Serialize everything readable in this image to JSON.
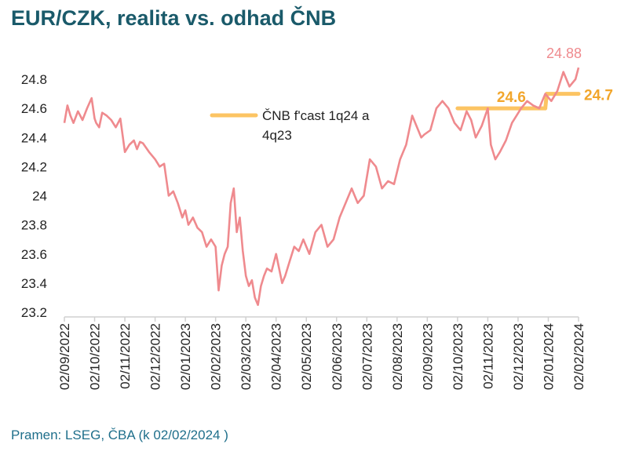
{
  "title": "EUR/CZK, realita vs. odhad ČNB",
  "source": "Pramen: LSEG, ČBA (k 02/02/2024 )",
  "colors": {
    "title": "#1a5a6a",
    "series": "#ef8a8e",
    "forecast": "#fcc463",
    "forecast_label": "#f2a62c",
    "last_label": "#ef8a8e",
    "axis": "#d0d0d0",
    "text": "#222222",
    "source": "#1f6f8b"
  },
  "chart_data": {
    "type": "line",
    "title": "EUR/CZK, realita vs. odhad ČNB",
    "xlabel": "",
    "ylabel": "",
    "ylim": [
      23.2,
      24.9
    ],
    "yticks": [
      "24.8",
      "24.6",
      "24.4",
      "24.2",
      "24",
      "23.8",
      "23.6",
      "23.4",
      "23.2"
    ],
    "xticks": [
      "02/09/2022",
      "02/10/2022",
      "02/11/2022",
      "02/12/2022",
      "02/01/2023",
      "02/02/2023",
      "02/03/2023",
      "02/04/2023",
      "02/05/2023",
      "02/06/2023",
      "02/07/2023",
      "02/08/2023",
      "02/09/2023",
      "02/10/2023",
      "02/11/2023",
      "02/12/2023",
      "02/01/2024",
      "02/02/2024"
    ],
    "series": [
      {
        "name": "EUR/CZK",
        "x_months": [
          0,
          0.1,
          0.2,
          0.3,
          0.45,
          0.6,
          0.75,
          0.9,
          1.0,
          1.05,
          1.15,
          1.25,
          1.4,
          1.55,
          1.7,
          1.85,
          2.0,
          2.15,
          2.3,
          2.4,
          2.5,
          2.6,
          2.8,
          3.0,
          3.15,
          3.3,
          3.45,
          3.6,
          3.75,
          3.9,
          4.0,
          4.1,
          4.25,
          4.4,
          4.55,
          4.7,
          4.85,
          5.0,
          5.1,
          5.2,
          5.3,
          5.4,
          5.5,
          5.6,
          5.7,
          5.8,
          5.9,
          6.0,
          6.1,
          6.2,
          6.3,
          6.4,
          6.5,
          6.6,
          6.7,
          6.85,
          7.0,
          7.2,
          7.3,
          7.45,
          7.6,
          7.75,
          7.9,
          8.1,
          8.3,
          8.5,
          8.7,
          8.9,
          9.1,
          9.3,
          9.5,
          9.7,
          9.9,
          10.1,
          10.3,
          10.5,
          10.7,
          10.9,
          11.1,
          11.3,
          11.5,
          11.7,
          11.8,
          11.9,
          12.1,
          12.3,
          12.5,
          12.7,
          12.9,
          13.1,
          13.3,
          13.45,
          13.6,
          13.8,
          14.0,
          14.1,
          14.25,
          14.4,
          14.6,
          14.8,
          14.95,
          15.1,
          15.3,
          15.5,
          15.7,
          15.9,
          16.1,
          16.3,
          16.5,
          16.7,
          16.9,
          17.0
        ],
        "values": [
          24.5,
          24.62,
          24.55,
          24.5,
          24.58,
          24.52,
          24.6,
          24.67,
          24.53,
          24.5,
          24.47,
          24.57,
          24.55,
          24.52,
          24.47,
          24.53,
          24.3,
          24.35,
          24.38,
          24.32,
          24.37,
          24.36,
          24.3,
          24.25,
          24.2,
          24.22,
          24.0,
          24.03,
          23.95,
          23.85,
          23.9,
          23.8,
          23.85,
          23.78,
          23.75,
          23.65,
          23.7,
          23.65,
          23.35,
          23.52,
          23.6,
          23.65,
          23.95,
          24.05,
          23.75,
          23.85,
          23.62,
          23.45,
          23.38,
          23.42,
          23.3,
          23.25,
          23.38,
          23.45,
          23.5,
          23.48,
          23.6,
          23.4,
          23.45,
          23.55,
          23.65,
          23.62,
          23.7,
          23.6,
          23.75,
          23.8,
          23.65,
          23.7,
          23.85,
          23.95,
          24.05,
          23.95,
          24.0,
          24.25,
          24.2,
          24.05,
          24.1,
          24.08,
          24.25,
          24.35,
          24.55,
          24.45,
          24.4,
          24.42,
          24.45,
          24.6,
          24.65,
          24.6,
          24.5,
          24.45,
          24.58,
          24.52,
          24.4,
          24.48,
          24.6,
          24.35,
          24.25,
          24.3,
          24.38,
          24.5,
          24.55,
          24.6,
          24.65,
          24.62,
          24.6,
          24.7,
          24.65,
          24.72,
          24.85,
          24.75,
          24.8,
          24.88
        ]
      },
      {
        "name": "ČNB f'cast 1q24 a 4q23",
        "segments": [
          {
            "x_months": [
              13.0,
              15.9
            ],
            "value": 24.6
          },
          {
            "x_months": [
              15.9,
              15.95
            ],
            "value_from": 24.6,
            "value_to": 24.7
          },
          {
            "x_months": [
              15.95,
              17.0
            ],
            "value": 24.7
          }
        ]
      }
    ],
    "legend": {
      "label_line1": "ČNB f'cast 1q24 a",
      "label_line2": "4q23",
      "placement": "top-center"
    },
    "annotations": [
      {
        "text": "24.88",
        "series": "EUR/CZK",
        "placement": "above-last-point"
      },
      {
        "text": "24.6",
        "series": "ČNB f'cast 1q24 a 4q23",
        "placement": "above-first-segment"
      },
      {
        "text": "24.7",
        "series": "ČNB f'cast 1q24 a 4q23",
        "placement": "right-of-last-segment"
      }
    ],
    "grid": false
  }
}
